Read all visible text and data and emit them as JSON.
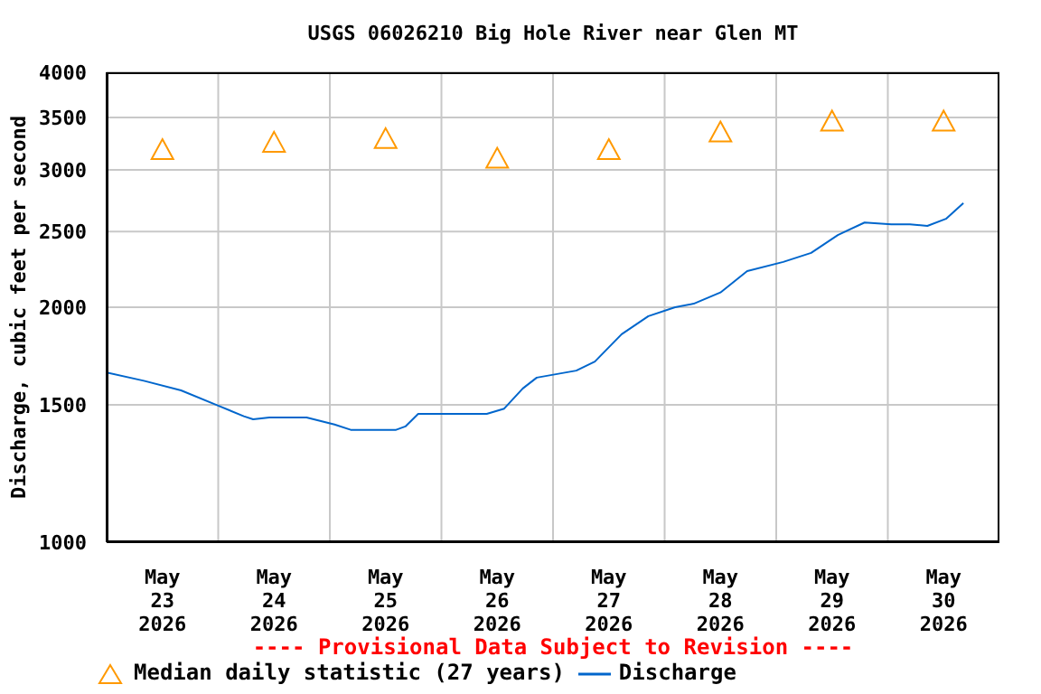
{
  "chart_data": {
    "type": "line",
    "title": "USGS 06026210 Big Hole River near Glen MT",
    "ylabel": "Discharge, cubic feet per second",
    "log": "y",
    "grid": true,
    "legend": "bottom",
    "xlim": [
      "2026-05-23T00:00",
      "2026-05-31T00:00"
    ],
    "xticks": [
      {
        "value": "2026-05-23T12:00",
        "label": "May\n23\n2026"
      },
      {
        "value": "2026-05-24T00:00",
        "label": null
      },
      {
        "value": "2026-05-24T12:00",
        "label": "May\n24\n2026"
      },
      {
        "value": "2026-05-25T00:00",
        "label": null
      },
      {
        "value": "2026-05-25T12:00",
        "label": "May\n25\n2026"
      },
      {
        "value": "2026-05-26T00:00",
        "label": null
      },
      {
        "value": "2026-05-26T12:00",
        "label": "May\n26\n2026"
      },
      {
        "value": "2026-05-27T00:00",
        "label": null
      },
      {
        "value": "2026-05-27T12:00",
        "label": "May\n27\n2026"
      },
      {
        "value": "2026-05-28T00:00",
        "label": null
      },
      {
        "value": "2026-05-28T12:00",
        "label": "May\n28\n2026"
      },
      {
        "value": "2026-05-29T00:00",
        "label": null
      },
      {
        "value": "2026-05-29T12:00",
        "label": "May\n29\n2026"
      },
      {
        "value": "2026-05-30T00:00",
        "label": null
      },
      {
        "value": "2026-05-30T12:00",
        "label": "May\n30\n2026"
      }
    ],
    "ylim": [
      1000,
      4000
    ],
    "yticks": [
      1000,
      1500,
      2000,
      2500,
      3000,
      3500,
      4000
    ],
    "annotations": [
      "---- Provisional Data Subject to Revision ----"
    ],
    "series": [
      {
        "name": "Median daily statistic (27 years)",
        "type": "scatter",
        "marker": "triangle",
        "color": "#ff9900",
        "x": [
          "2026-05-23T12:00",
          "2026-05-24T12:00",
          "2026-05-25T12:00",
          "2026-05-26T12:00",
          "2026-05-27T12:00",
          "2026-05-28T12:00",
          "2026-05-29T12:00",
          "2026-05-30T12:00"
        ],
        "values": [
          3180,
          3250,
          3285,
          3100,
          3180,
          3350,
          3460,
          3460
        ]
      },
      {
        "name": "Discharge",
        "marker": "none",
        "color": "#0066cc",
        "x": [
          "2026-05-23T00:00",
          "2026-05-23T08:00",
          "2026-05-23T16:00",
          "2026-05-23T23:30",
          "2026-05-24T05:30",
          "2026-05-24T07:30",
          "2026-05-24T11:00",
          "2026-05-24T19:00",
          "2026-05-25T01:00",
          "2026-05-25T04:30",
          "2026-05-25T14:15",
          "2026-05-25T16:15",
          "2026-05-25T19:00",
          "2026-05-25T22:00",
          "2026-05-26T09:45",
          "2026-05-26T13:30",
          "2026-05-26T17:30",
          "2026-05-26T20:30",
          "2026-05-27T05:00",
          "2026-05-27T09:00",
          "2026-05-27T14:45",
          "2026-05-27T20:30",
          "2026-05-28T02:15",
          "2026-05-28T06:15",
          "2026-05-28T12:00",
          "2026-05-28T17:45",
          "2026-05-29T01:30",
          "2026-05-29T07:30",
          "2026-05-29T13:15",
          "2026-05-29T19:00",
          "2026-05-30T00:45",
          "2026-05-30T04:45",
          "2026-05-30T08:30",
          "2026-05-30T12:30",
          "2026-05-30T16:15"
        ],
        "values": [
          1650,
          1610,
          1565,
          1500,
          1450,
          1437,
          1445,
          1445,
          1415,
          1393,
          1393,
          1407,
          1460,
          1460,
          1460,
          1483,
          1574,
          1625,
          1659,
          1704,
          1847,
          1948,
          2000,
          2021,
          2089,
          2225,
          2286,
          2348,
          2475,
          2568,
          2555,
          2555,
          2542,
          2596,
          2720
        ]
      }
    ]
  }
}
